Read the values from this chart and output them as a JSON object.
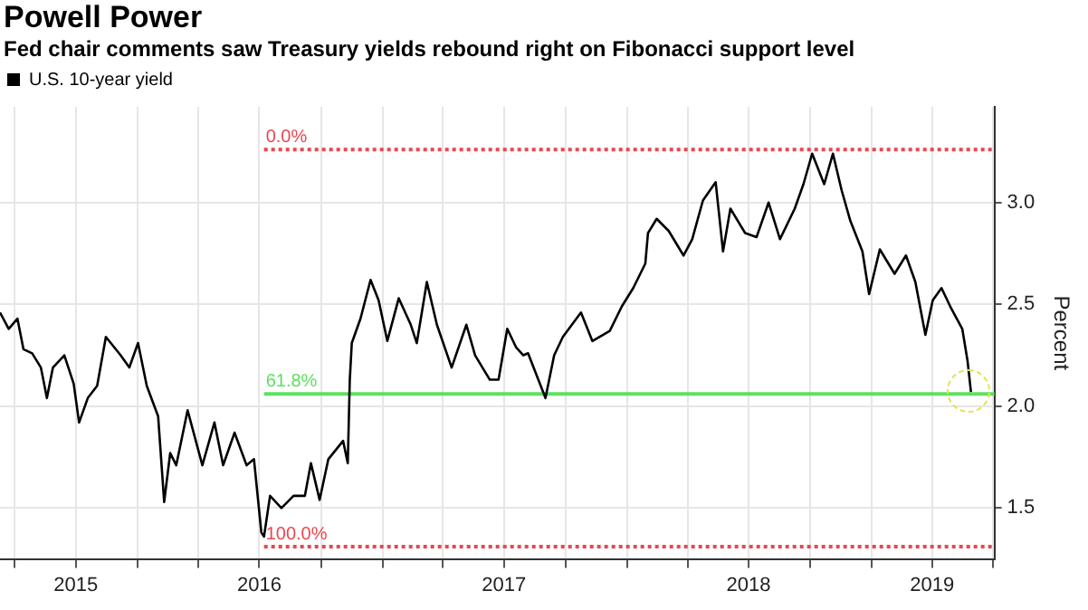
{
  "chart_data": {
    "type": "line",
    "title": "Powell Power",
    "subtitle": "Fed chair comments saw Treasury yields rebound right on Fibonacci support level",
    "ylabel": "Percent",
    "series": [
      {
        "name": "U.S. 10-year yield",
        "color": "#000000",
        "x": [
          "2015-06-10",
          "2015-06-23",
          "2015-07-06",
          "2015-07-15",
          "2015-07-28",
          "2015-08-10",
          "2015-08-19",
          "2015-08-28",
          "2015-09-14",
          "2015-09-28",
          "2015-10-06",
          "2015-10-19",
          "2015-11-02",
          "2015-11-15",
          "2015-12-07",
          "2015-12-20",
          "2016-01-02",
          "2016-01-15",
          "2016-02-01",
          "2016-02-10",
          "2016-02-19",
          "2016-02-28",
          "2016-03-16",
          "2016-04-07",
          "2016-04-25",
          "2016-05-08",
          "2016-05-25",
          "2016-06-12",
          "2016-06-23",
          "2016-07-04",
          "2016-07-08",
          "2016-07-17",
          "2016-08-03",
          "2016-08-21",
          "2016-09-07",
          "2016-09-16",
          "2016-09-29",
          "2016-10-12",
          "2016-11-03",
          "2016-11-10",
          "2016-11-13",
          "2016-11-16",
          "2016-11-29",
          "2016-12-14",
          "2016-12-26",
          "2017-01-08",
          "2017-01-25",
          "2017-02-12",
          "2017-02-21",
          "2017-03-08",
          "2017-03-23",
          "2017-04-14",
          "2017-05-06",
          "2017-05-19",
          "2017-06-10",
          "2017-06-23",
          "2017-07-06",
          "2017-07-19",
          "2017-07-30",
          "2017-08-06",
          "2017-09-01",
          "2017-09-14",
          "2017-09-27",
          "2017-10-24",
          "2017-11-10",
          "2017-12-06",
          "2017-12-24",
          "2018-01-10",
          "2018-01-28",
          "2018-02-01",
          "2018-02-14",
          "2018-03-04",
          "2018-03-26",
          "2018-04-08",
          "2018-04-24",
          "2018-05-13",
          "2018-05-24",
          "2018-06-04",
          "2018-06-26",
          "2018-07-13",
          "2018-07-31",
          "2018-08-17",
          "2018-09-08",
          "2018-09-21",
          "2018-10-04",
          "2018-10-22",
          "2018-11-04",
          "2018-11-17",
          "2018-11-30",
          "2018-12-18",
          "2018-12-28",
          "2019-01-13",
          "2019-02-04",
          "2019-02-21",
          "2019-03-07",
          "2019-03-22",
          "2019-04-02",
          "2019-04-15",
          "2019-04-28",
          "2019-05-16",
          "2019-05-24",
          "2019-05-29"
        ],
        "values": [
          2.46,
          2.38,
          2.43,
          2.28,
          2.26,
          2.19,
          2.04,
          2.19,
          2.25,
          2.11,
          1.92,
          2.04,
          2.1,
          2.34,
          2.25,
          2.19,
          2.31,
          2.1,
          1.95,
          1.53,
          1.77,
          1.71,
          1.98,
          1.71,
          1.92,
          1.71,
          1.87,
          1.71,
          1.74,
          1.38,
          1.36,
          1.56,
          1.5,
          1.56,
          1.56,
          1.72,
          1.54,
          1.74,
          1.83,
          1.72,
          2.13,
          2.31,
          2.43,
          2.62,
          2.52,
          2.32,
          2.53,
          2.4,
          2.31,
          2.61,
          2.4,
          2.19,
          2.4,
          2.25,
          2.13,
          2.13,
          2.38,
          2.29,
          2.25,
          2.26,
          2.04,
          2.25,
          2.34,
          2.46,
          2.32,
          2.37,
          2.49,
          2.58,
          2.7,
          2.85,
          2.92,
          2.86,
          2.74,
          2.82,
          3.01,
          3.1,
          2.76,
          2.97,
          2.85,
          2.83,
          3.0,
          2.82,
          2.97,
          3.09,
          3.24,
          3.09,
          3.24,
          3.06,
          2.91,
          2.76,
          2.55,
          2.77,
          2.65,
          2.74,
          2.61,
          2.35,
          2.52,
          2.58,
          2.49,
          2.38,
          2.22,
          2.07
        ]
      }
    ],
    "xlim": [
      "2015-06-10",
      "2019-07-03"
    ],
    "xticks": [
      {
        "value": "2015-07-01",
        "label": null
      },
      {
        "value": "2015-10-01",
        "label": "2015"
      },
      {
        "value": "2016-01-01",
        "label": null
      },
      {
        "value": "2016-04-01",
        "label": null
      },
      {
        "value": "2016-07-01",
        "label": "2016"
      },
      {
        "value": "2016-10-01",
        "label": null
      },
      {
        "value": "2017-01-01",
        "label": null
      },
      {
        "value": "2017-04-01",
        "label": null
      },
      {
        "value": "2017-07-01",
        "label": "2017"
      },
      {
        "value": "2017-10-01",
        "label": null
      },
      {
        "value": "2018-01-01",
        "label": null
      },
      {
        "value": "2018-04-01",
        "label": null
      },
      {
        "value": "2018-07-01",
        "label": "2018"
      },
      {
        "value": "2018-10-01",
        "label": null
      },
      {
        "value": "2019-01-01",
        "label": null
      },
      {
        "value": "2019-04-01",
        "label": "2019"
      },
      {
        "value": "2019-07-01",
        "label": null
      }
    ],
    "ylim": [
      1.25,
      3.47
    ],
    "yticks": [
      {
        "value": 1.5,
        "label": "1.5"
      },
      {
        "value": 2,
        "label": "2.0"
      },
      {
        "value": 2.5,
        "label": "2.5"
      },
      {
        "value": 3,
        "label": "3.0"
      }
    ],
    "ref_lines": [
      {
        "axis": "y",
        "value": 3.26,
        "color": "#e8474f",
        "line_style": "dotted"
      },
      {
        "axis": "y",
        "value": 2.06,
        "color": "#5fe05f",
        "line_style": "solid"
      },
      {
        "axis": "y",
        "value": 1.31,
        "color": "#e8474f",
        "line_style": "dotted"
      }
    ],
    "annotations": [
      {
        "text": "0.0%",
        "x": "2016-07-08",
        "y": 3.26
      },
      {
        "text": "61.8%",
        "x": "2016-07-08",
        "y": 2.06
      },
      {
        "text": "100.0%",
        "x": "2016-07-08",
        "y": 1.31
      }
    ],
    "grid": true,
    "legend": "top left",
    "marker": "none",
    "line_style": "solid"
  }
}
